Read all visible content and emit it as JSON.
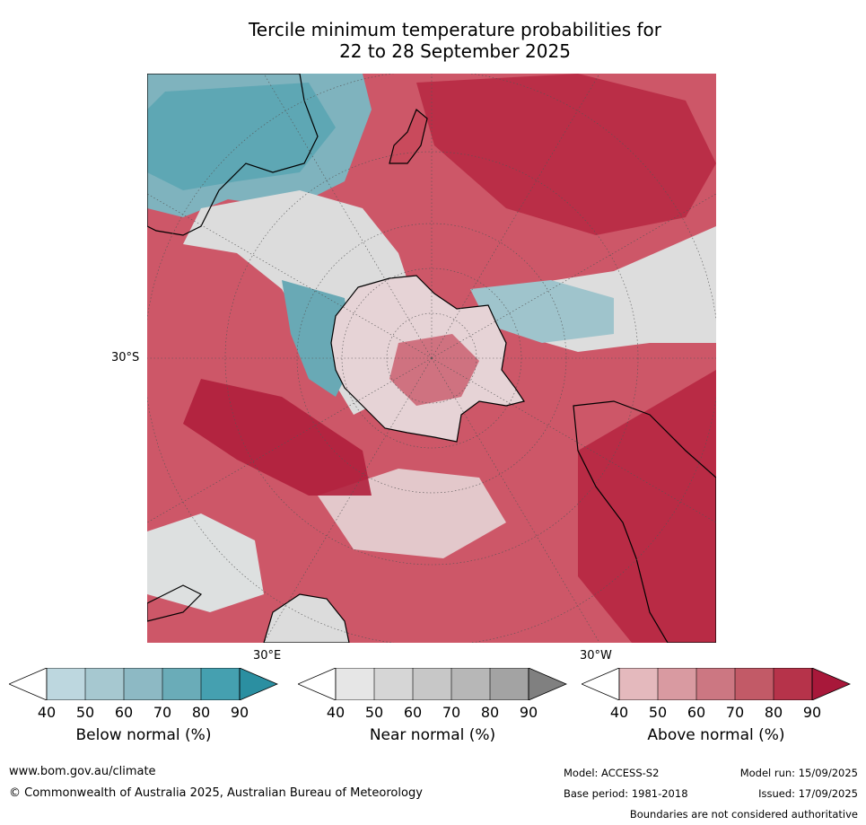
{
  "title": {
    "line1": "Tercile minimum temperature probabilities for",
    "line2": "22 to 28 September 2025"
  },
  "map": {
    "projection": "south-polar",
    "lat_label": "30°S",
    "lon_labels": [
      "30°E",
      "30°W"
    ],
    "colors": {
      "ocean_warm": "#c73b52",
      "ocean_warm_light": "#d98590",
      "near_gray": "#d6d6d6",
      "below_teal": "#5fa9b6",
      "land_outline": "#000000"
    }
  },
  "colorbars": [
    {
      "label": "Below normal (%)",
      "ticks": [
        "40",
        "50",
        "60",
        "70",
        "80",
        "90"
      ],
      "colors": [
        "#ffffff",
        "#bdd7df",
        "#a6c8d0",
        "#8db9c4",
        "#6aacb8",
        "#45a0b0",
        "#2b8fa1"
      ]
    },
    {
      "label": "Near normal (%)",
      "ticks": [
        "40",
        "50",
        "60",
        "70",
        "80",
        "90"
      ],
      "colors": [
        "#ffffff",
        "#e6e6e6",
        "#d6d6d6",
        "#c7c7c7",
        "#b7b7b7",
        "#a3a3a3",
        "#808080"
      ]
    },
    {
      "label": "Above normal (%)",
      "ticks": [
        "40",
        "50",
        "60",
        "70",
        "80",
        "90"
      ],
      "colors": [
        "#ffffff",
        "#e4b9bd",
        "#d99aa1",
        "#cc7782",
        "#c25a67",
        "#b6334a",
        "#a8183a"
      ]
    }
  ],
  "footer": {
    "website": "www.bom.gov.au/climate",
    "copyright": "© Commonwealth of Australia 2025, Australian Bureau of Meteorology",
    "model": "Model: ACCESS-S2",
    "base_period": "Base period: 1981-2018",
    "model_run": "Model run: 15/09/2025",
    "issued": "Issued: 17/09/2025",
    "disclaimer": "Boundaries are not considered authoritative"
  }
}
